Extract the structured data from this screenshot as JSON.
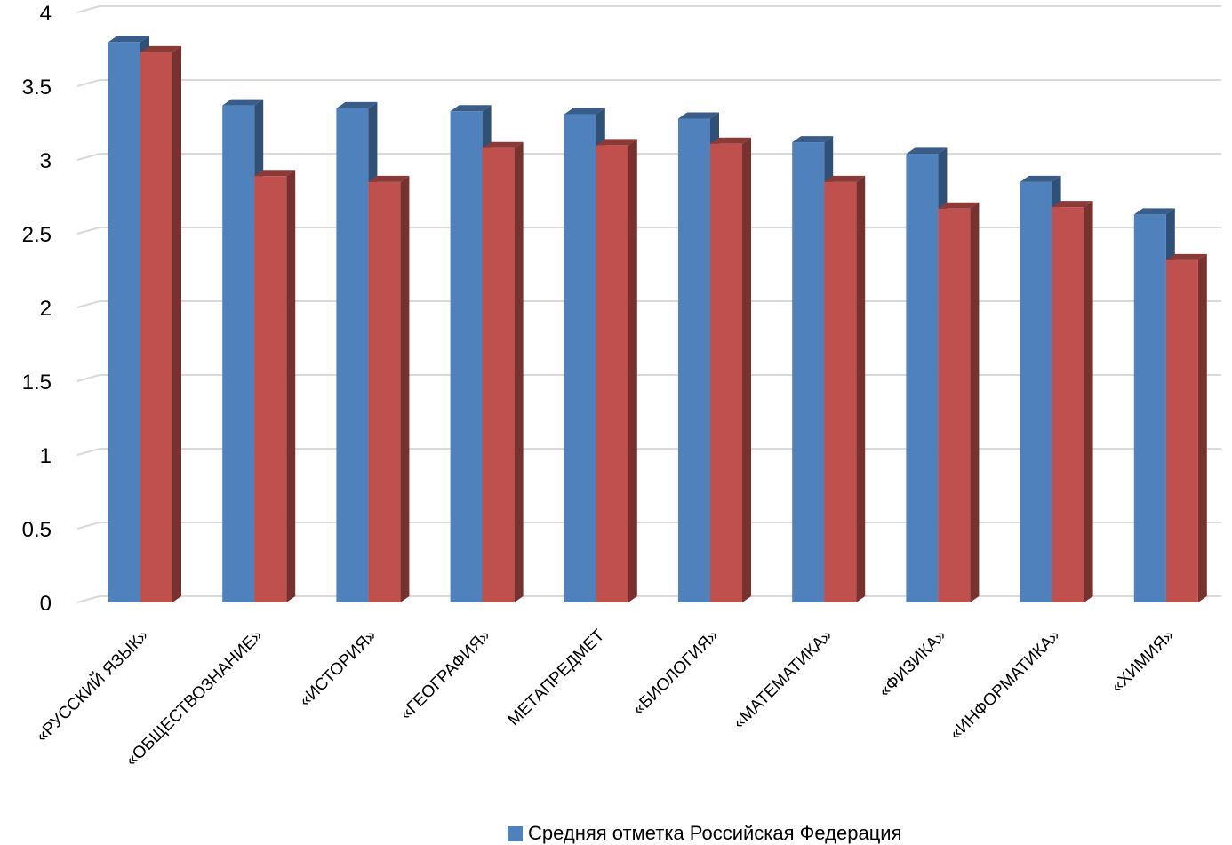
{
  "chart_data": {
    "type": "bar",
    "categories": [
      "«РУССКИЙ ЯЗЫК»",
      "«ОБЩЕСТВОЗНАНИЕ»",
      "«ИСТОРИЯ»",
      "«ГЕОГРАФИЯ»",
      "МЕТАПРЕДМЕТ",
      "«БИОЛОГИЯ»",
      "«МАТЕМАТИКА»",
      "«ФИЗИКА»",
      "«ИНФОРМАТИКА»",
      "«ХИМИЯ»"
    ],
    "series": [
      {
        "name": "Средняя отметка Российская Федерация",
        "color": "#4F81BD",
        "values": [
          3.8,
          3.37,
          3.35,
          3.33,
          3.31,
          3.28,
          3.12,
          3.04,
          2.85,
          2.63
        ]
      },
      {
        "color": "#C0504D",
        "values": [
          3.73,
          2.89,
          2.85,
          3.08,
          3.1,
          3.11,
          2.85,
          2.67,
          2.68,
          2.32
        ]
      }
    ],
    "ylim": [
      0,
      4
    ],
    "yticks": [
      "0",
      "0.5",
      "1",
      "1.5",
      "2",
      "2.5",
      "3",
      "3.5",
      "4"
    ],
    "grid": true,
    "legend_position": "bottom",
    "style": "3d-clustered-column"
  }
}
